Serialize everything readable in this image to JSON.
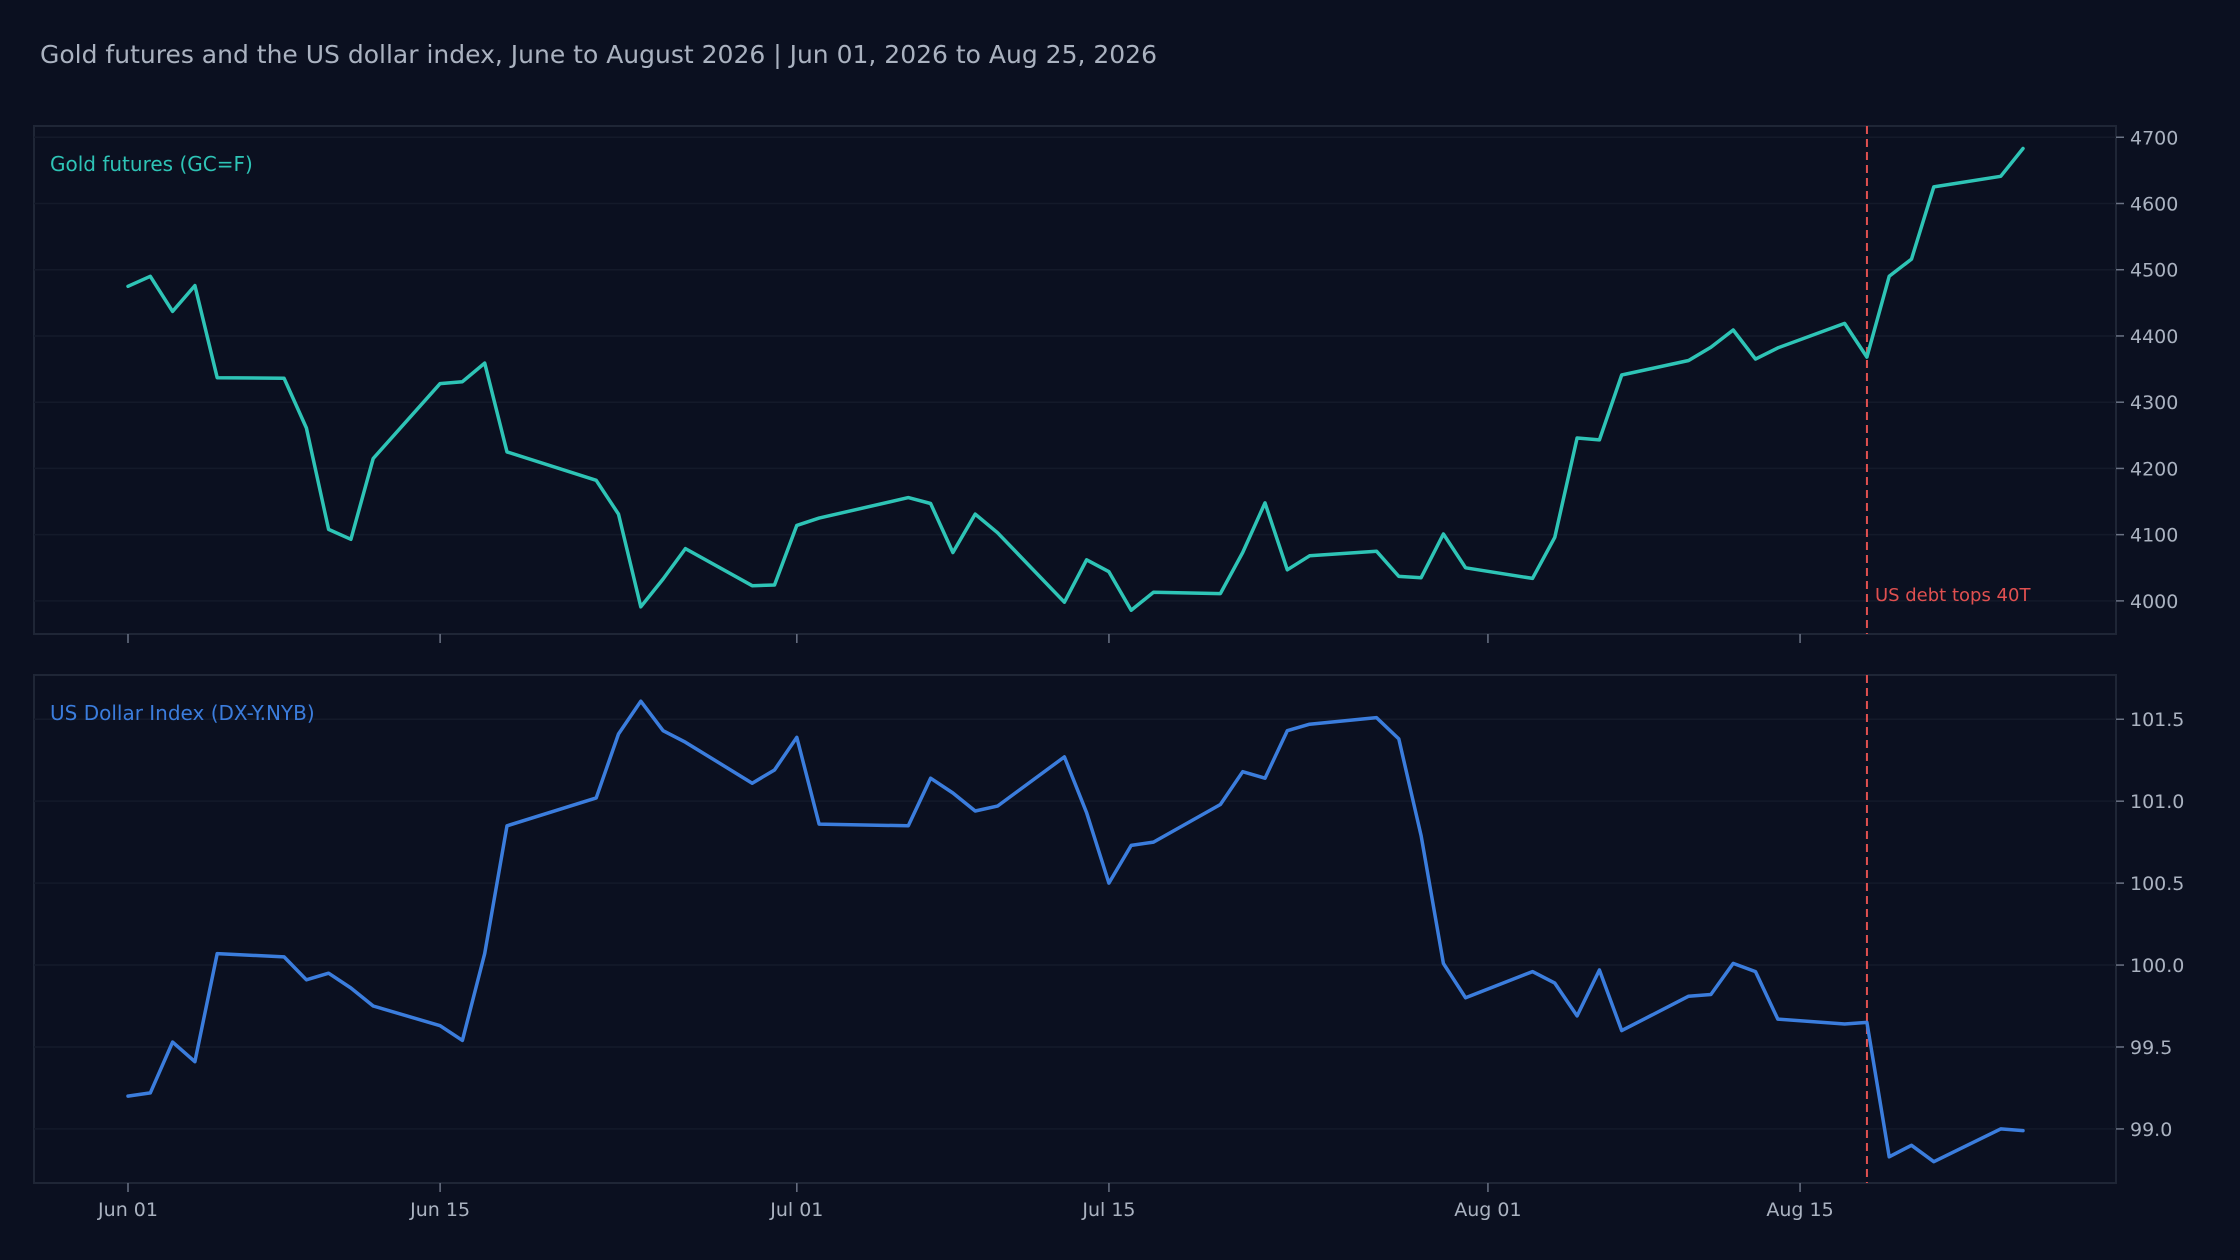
{
  "colors": {
    "background": "#0b1020",
    "gold_line": "#2ec4b6",
    "dxy_line": "#3b7ddd",
    "event_line": "#e05050",
    "text": "#aab2c0",
    "panel_border": "#1f2636",
    "grid": "#141a2a"
  },
  "chart_data": {
    "title": "Gold futures and the US dollar index, June to August 2026 | Jun 01, 2026 to Aug 25, 2026",
    "type": "line",
    "x_domain": [
      "2026-06-01",
      "2026-08-25"
    ],
    "x_ticks": [
      {
        "date": "2026-06-01",
        "label": "Jun 01"
      },
      {
        "date": "2026-06-15",
        "label": "Jun 15"
      },
      {
        "date": "2026-07-01",
        "label": "Jul 01"
      },
      {
        "date": "2026-07-15",
        "label": "Jul 15"
      },
      {
        "date": "2026-08-01",
        "label": "Aug 01"
      },
      {
        "date": "2026-08-15",
        "label": "Aug 15"
      }
    ],
    "event": {
      "date": "2026-08-18",
      "label": "US debt tops 40T"
    },
    "grid": true,
    "panels": [
      {
        "name": "Gold futures (GC=F)",
        "ylim": [
          3950,
          4717
        ],
        "y_ticks": [
          "4000",
          "4100",
          "4200",
          "4300",
          "4400",
          "4500",
          "4600",
          "4700"
        ],
        "dates": [
          "2026-06-01",
          "2026-06-02",
          "2026-06-03",
          "2026-06-04",
          "2026-06-05",
          "2026-06-08",
          "2026-06-09",
          "2026-06-10",
          "2026-06-11",
          "2026-06-12",
          "2026-06-15",
          "2026-06-16",
          "2026-06-17",
          "2026-06-18",
          "2026-06-22",
          "2026-06-23",
          "2026-06-24",
          "2026-06-25",
          "2026-06-26",
          "2026-06-29",
          "2026-06-30",
          "2026-07-01",
          "2026-07-02",
          "2026-07-06",
          "2026-07-07",
          "2026-07-08",
          "2026-07-09",
          "2026-07-10",
          "2026-07-13",
          "2026-07-14",
          "2026-07-15",
          "2026-07-16",
          "2026-07-17",
          "2026-07-20",
          "2026-07-21",
          "2026-07-22",
          "2026-07-23",
          "2026-07-24",
          "2026-07-27",
          "2026-07-28",
          "2026-07-29",
          "2026-07-30",
          "2026-07-31",
          "2026-08-03",
          "2026-08-04",
          "2026-08-05",
          "2026-08-06",
          "2026-08-07",
          "2026-08-10",
          "2026-08-11",
          "2026-08-12",
          "2026-08-13",
          "2026-08-14",
          "2026-08-17",
          "2026-08-18",
          "2026-08-19",
          "2026-08-20",
          "2026-08-21",
          "2026-08-24",
          "2026-08-25"
        ],
        "values": [
          4475,
          4490,
          4437,
          4476,
          4337,
          4336,
          4261,
          4108,
          4093,
          4215,
          4328,
          4331,
          4359,
          4225,
          4182,
          4131,
          3991,
          4033,
          4079,
          4023,
          4024,
          4114,
          4125,
          4156,
          4147,
          4073,
          4131,
          4103,
          3998,
          4062,
          4044,
          3986,
          4013,
          4011,
          4073,
          4148,
          4047,
          4068,
          4075,
          4037,
          4035,
          4101,
          4050,
          4034,
          4096,
          4246,
          4243,
          4341,
          4363,
          4383,
          4409,
          4365,
          4382,
          4419,
          4368,
          4490,
          4516,
          4625,
          4641,
          4683
        ]
      },
      {
        "name": "US Dollar Index (DX-Y.NYB)",
        "ylim": [
          98.67,
          101.77
        ],
        "y_ticks": [
          "99.0",
          "99.5",
          "100.0",
          "100.5",
          "101.0",
          "101.5"
        ],
        "dates": [
          "2026-06-01",
          "2026-06-02",
          "2026-06-03",
          "2026-06-04",
          "2026-06-05",
          "2026-06-08",
          "2026-06-09",
          "2026-06-10",
          "2026-06-11",
          "2026-06-12",
          "2026-06-15",
          "2026-06-16",
          "2026-06-17",
          "2026-06-18",
          "2026-06-22",
          "2026-06-23",
          "2026-06-24",
          "2026-06-25",
          "2026-06-26",
          "2026-06-29",
          "2026-06-30",
          "2026-07-01",
          "2026-07-02",
          "2026-07-06",
          "2026-07-07",
          "2026-07-08",
          "2026-07-09",
          "2026-07-10",
          "2026-07-13",
          "2026-07-14",
          "2026-07-15",
          "2026-07-16",
          "2026-07-17",
          "2026-07-20",
          "2026-07-21",
          "2026-07-22",
          "2026-07-23",
          "2026-07-24",
          "2026-07-27",
          "2026-07-28",
          "2026-07-29",
          "2026-07-30",
          "2026-07-31",
          "2026-08-03",
          "2026-08-04",
          "2026-08-05",
          "2026-08-06",
          "2026-08-07",
          "2026-08-10",
          "2026-08-11",
          "2026-08-12",
          "2026-08-13",
          "2026-08-14",
          "2026-08-17",
          "2026-08-18",
          "2026-08-19",
          "2026-08-20",
          "2026-08-21",
          "2026-08-24",
          "2026-08-25"
        ],
        "values": [
          99.2,
          99.22,
          99.53,
          99.41,
          100.07,
          100.05,
          99.91,
          99.95,
          99.86,
          99.75,
          99.63,
          99.54,
          100.07,
          100.85,
          101.02,
          101.41,
          101.61,
          101.43,
          101.36,
          101.11,
          101.19,
          101.39,
          100.86,
          100.85,
          101.14,
          101.05,
          100.94,
          100.97,
          101.27,
          100.93,
          100.5,
          100.73,
          100.75,
          100.98,
          101.18,
          101.14,
          101.43,
          101.47,
          101.51,
          101.38,
          100.79,
          100.01,
          99.8,
          99.96,
          99.89,
          99.69,
          99.97,
          99.6,
          99.81,
          99.82,
          100.01,
          99.96,
          99.67,
          99.64,
          99.65,
          98.83,
          98.9,
          98.8,
          99.0,
          98.99
        ]
      }
    ]
  }
}
